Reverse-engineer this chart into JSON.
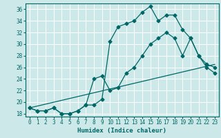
{
  "title": "",
  "xlabel": "Humidex (Indice chaleur)",
  "ylabel": "",
  "bg_color": "#cce8e8",
  "grid_color": "#ffffff",
  "line_color": "#006666",
  "xlim": [
    -0.5,
    23.5
  ],
  "ylim": [
    17.5,
    37
  ],
  "xticks": [
    0,
    1,
    2,
    3,
    4,
    5,
    6,
    7,
    8,
    9,
    10,
    11,
    12,
    13,
    14,
    15,
    16,
    17,
    18,
    19,
    20,
    21,
    22,
    23
  ],
  "yticks": [
    18,
    20,
    22,
    24,
    26,
    28,
    30,
    32,
    34,
    36
  ],
  "line1_x": [
    0,
    1,
    2,
    3,
    4,
    5,
    6,
    7,
    8,
    9,
    10,
    11,
    12,
    13,
    14,
    15,
    16,
    17,
    18,
    19,
    20,
    21,
    22,
    23
  ],
  "line1_y": [
    19,
    18.5,
    18.5,
    19,
    18,
    18,
    18.5,
    19.5,
    19.5,
    20.5,
    30.5,
    33,
    33.5,
    34,
    35.5,
    36.5,
    34,
    35,
    35,
    32.5,
    31,
    28,
    26.5,
    26
  ],
  "line2_x": [
    0,
    1,
    2,
    3,
    4,
    5,
    6,
    7,
    8,
    9,
    10,
    11,
    12,
    13,
    14,
    15,
    16,
    17,
    18,
    19,
    20,
    21,
    22,
    23
  ],
  "line2_y": [
    19,
    18.5,
    18.5,
    19,
    18,
    18,
    18.5,
    19.5,
    24,
    24.5,
    22,
    22.5,
    25,
    26,
    28,
    30,
    31,
    32,
    31,
    28,
    31,
    28,
    26,
    25
  ],
  "line3_x": [
    0,
    23
  ],
  "line3_y": [
    19,
    26.5
  ],
  "tickfont": 5.5,
  "labelfont": 6.5
}
